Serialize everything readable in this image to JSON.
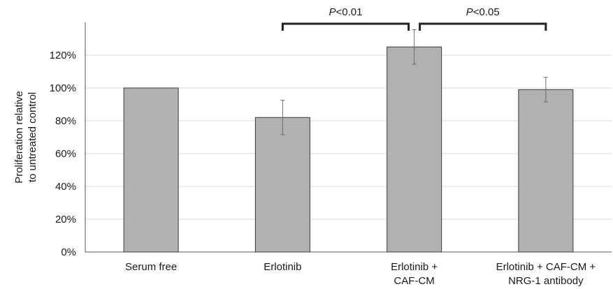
{
  "chart_data": {
    "type": "bar",
    "categories": [
      [
        "Serum free"
      ],
      [
        "Erlotinib"
      ],
      [
        "Erlotinib +",
        "CAF-CM"
      ],
      [
        "Erlotinib + CAF-CM +",
        "NRG-1 antibody"
      ]
    ],
    "values": [
      100,
      82,
      125,
      99
    ],
    "errors": [
      0,
      10.5,
      10.5,
      7.5
    ],
    "ylabel": [
      "Proliferation relative",
      "to untreated control"
    ],
    "ylim": [
      0,
      140
    ],
    "yticks": [
      0,
      20,
      40,
      60,
      80,
      100,
      120
    ],
    "ytick_labels": [
      "0%",
      "20%",
      "40%",
      "60%",
      "80%",
      "100%",
      "120%"
    ],
    "grid": true,
    "colors": {
      "bar": "#b1b1b4",
      "bar_edge": "#3a3a3a",
      "grid": "#d9d9d9",
      "axis": "#555555"
    },
    "annotations": [
      {
        "from": 1,
        "to": 2,
        "p_symbol": "P",
        "p_rest": "<0.01"
      },
      {
        "from": 2,
        "to": 3,
        "p_symbol": "P",
        "p_rest": "<0.05"
      }
    ]
  }
}
